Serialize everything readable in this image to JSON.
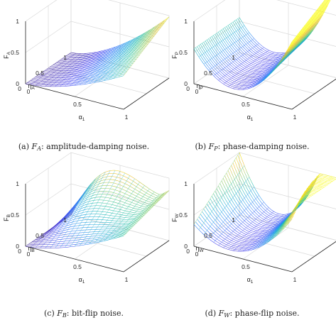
{
  "figures": [
    {
      "id": "a",
      "caption": {
        "tag": "(a)",
        "symbol": "F",
        "sub": "A",
        "text": ": amplitude-damping noise."
      },
      "zlabel": {
        "main": "F",
        "sub": "A"
      },
      "xlabel": {
        "main": "α",
        "sub": "1"
      },
      "ylabel": {
        "main": "η",
        "sub": "A"
      },
      "ticks": {
        "z": [
          "0",
          "0.5",
          "1"
        ],
        "x": [
          "0",
          "0.5",
          "1"
        ],
        "y": [
          "0",
          "0.5",
          "1"
        ]
      }
    },
    {
      "id": "b",
      "caption": {
        "tag": "(b)",
        "symbol": "F",
        "sub": "P",
        "text": ": phase-damping noise."
      },
      "zlabel": {
        "main": "F",
        "sub": "P"
      },
      "xlabel": {
        "main": "α",
        "sub": "1"
      },
      "ylabel": {
        "main": "η",
        "sub": "P"
      },
      "ticks": {
        "z": [
          "0",
          "0.5",
          "1"
        ],
        "x": [
          "0",
          "0.5",
          "1"
        ],
        "y": [
          "0",
          "0.5",
          "1"
        ]
      }
    },
    {
      "id": "c",
      "caption": {
        "tag": "(c)",
        "symbol": "F",
        "sub": "B",
        "text": ": bit-flip noise."
      },
      "zlabel": {
        "main": "F",
        "sub": "B"
      },
      "xlabel": {
        "main": "α",
        "sub": "1"
      },
      "ylabel": {
        "main": "η",
        "sub": "B"
      },
      "ticks": {
        "z": [
          "0",
          "0.5",
          "1"
        ],
        "x": [
          "0",
          "0.5",
          "1"
        ],
        "y": [
          "0",
          "0.5",
          "1"
        ]
      }
    },
    {
      "id": "d",
      "caption": {
        "tag": "(d)",
        "symbol": "F",
        "sub": "W",
        "text": ": phase-flip noise."
      },
      "zlabel": {
        "main": "F",
        "sub": "W"
      },
      "xlabel": {
        "main": "α",
        "sub": "1"
      },
      "ylabel": {
        "main": "η",
        "sub": "W"
      },
      "ticks": {
        "z": [
          "0",
          "0.5",
          "1"
        ],
        "x": [
          "0",
          "0.5",
          "1"
        ],
        "y": [
          "0",
          "0.5",
          "1"
        ]
      }
    }
  ],
  "colormap": [
    "#3e26a8",
    "#4743f0",
    "#2f7cf7",
    "#19a6e0",
    "#28c1a5",
    "#8ecb5c",
    "#ecbd2f",
    "#f9fb15"
  ]
}
